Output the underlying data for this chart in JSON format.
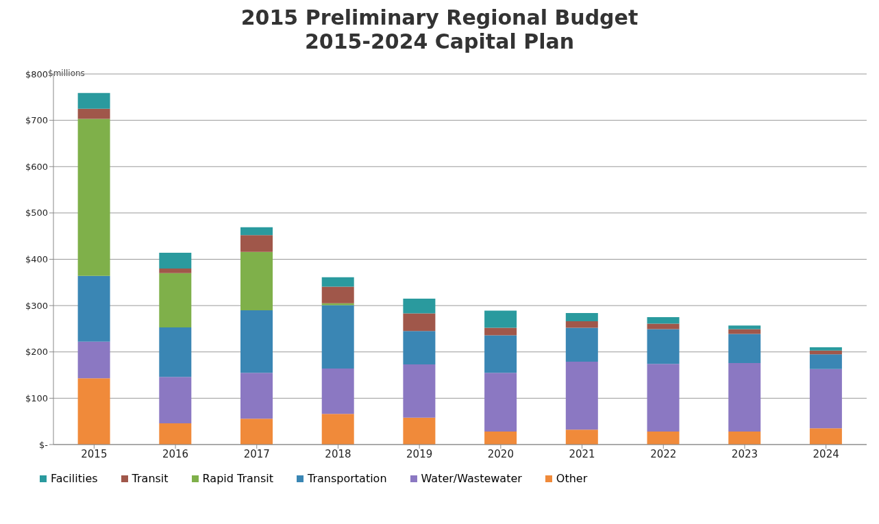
{
  "chart_data": {
    "type": "bar",
    "stacked": true,
    "title": "2015 Preliminary Regional Budget",
    "subtitle": "2015-2024 Capital Plan",
    "ylabel": "$millions",
    "categories": [
      "2015",
      "2016",
      "2017",
      "2018",
      "2019",
      "2020",
      "2021",
      "2022",
      "2023",
      "2024"
    ],
    "series": [
      {
        "name": "Other",
        "color": "#f08a3a",
        "values": [
          143,
          46,
          56,
          66,
          58,
          28,
          32,
          28,
          28,
          35
        ]
      },
      {
        "name": "Water/Wastewater",
        "color": "#8b78c2",
        "values": [
          79,
          100,
          99,
          98,
          115,
          127,
          147,
          146,
          148,
          128
        ]
      },
      {
        "name": "Transportation",
        "color": "#3a86b4",
        "values": [
          142,
          107,
          135,
          137,
          72,
          81,
          73,
          75,
          63,
          32
        ]
      },
      {
        "name": "Rapid Transit",
        "color": "#7fb04a",
        "values": [
          339,
          117,
          126,
          4,
          0,
          0,
          0,
          0,
          0,
          0
        ]
      },
      {
        "name": "Transit",
        "color": "#a0574a",
        "values": [
          22,
          10,
          36,
          36,
          38,
          16,
          14,
          12,
          10,
          8
        ]
      },
      {
        "name": "Facilities",
        "color": "#2a9a9e",
        "values": [
          34,
          34,
          17,
          20,
          32,
          37,
          18,
          14,
          8,
          7
        ]
      }
    ],
    "ylim": [
      0,
      800
    ],
    "yticks": [
      {
        "value": 0,
        "label": "$-"
      },
      {
        "value": 100,
        "label": "$100"
      },
      {
        "value": 200,
        "label": "$200"
      },
      {
        "value": 300,
        "label": "$300"
      },
      {
        "value": 400,
        "label": "$400"
      },
      {
        "value": 500,
        "label": "$500"
      },
      {
        "value": 600,
        "label": "$600"
      },
      {
        "value": 700,
        "label": "$700"
      },
      {
        "value": 800,
        "label": "$800"
      }
    ],
    "grid": "y",
    "legend": "bottom"
  }
}
